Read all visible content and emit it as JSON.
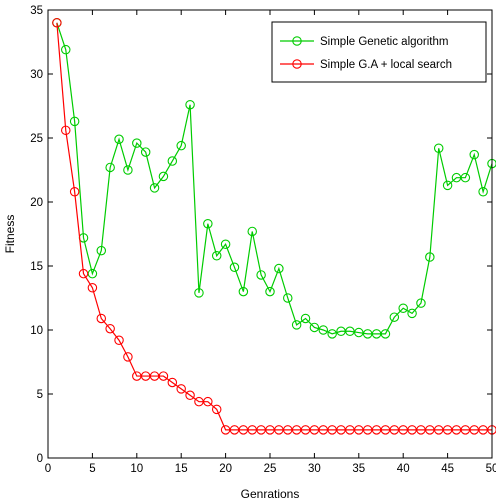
{
  "chart_data": {
    "type": "line",
    "title": "",
    "xlabel": "Genrations",
    "ylabel": "Fitness",
    "xlim": [
      0,
      50
    ],
    "ylim": [
      0,
      35
    ],
    "xticks": [
      0,
      5,
      10,
      15,
      20,
      25,
      30,
      35,
      40,
      45,
      50
    ],
    "yticks": [
      0,
      5,
      10,
      15,
      20,
      25,
      30,
      35
    ],
    "grid": false,
    "legend_position": "top-right",
    "x": [
      1,
      2,
      3,
      4,
      5,
      6,
      7,
      8,
      9,
      10,
      11,
      12,
      13,
      14,
      15,
      16,
      17,
      18,
      19,
      20,
      21,
      22,
      23,
      24,
      25,
      26,
      27,
      28,
      29,
      30,
      31,
      32,
      33,
      34,
      35,
      36,
      37,
      38,
      39,
      40,
      41,
      42,
      43,
      44,
      45,
      46,
      47,
      48,
      49,
      50
    ],
    "series": [
      {
        "name": "Simple Genetic algorithm",
        "color": "#00cc00",
        "marker": "circle",
        "values": [
          34,
          31.9,
          26.3,
          17.2,
          14.4,
          16.2,
          22.7,
          24.9,
          22.5,
          24.6,
          23.9,
          21.1,
          22,
          23.2,
          24.4,
          27.6,
          12.9,
          18.3,
          15.8,
          16.7,
          14.9,
          13,
          17.7,
          14.3,
          13,
          14.8,
          12.5,
          10.4,
          10.9,
          10.2,
          10,
          9.7,
          9.9,
          9.9,
          9.8,
          9.7,
          9.7,
          9.7,
          11,
          11.7,
          11.3,
          12.1,
          15.7,
          24.2,
          21.3,
          21.9,
          21.9,
          23.7,
          20.8,
          23
        ]
      },
      {
        "name": "Simple G.A + local search",
        "color": "#ff0000",
        "marker": "circle",
        "values": [
          34,
          25.6,
          20.8,
          14.4,
          13.3,
          10.9,
          10.1,
          9.2,
          7.9,
          6.4,
          6.4,
          6.4,
          6.4,
          5.9,
          5.4,
          4.9,
          4.4,
          4.4,
          3.8,
          2.2,
          2.2,
          2.2,
          2.2,
          2.2,
          2.2,
          2.2,
          2.2,
          2.2,
          2.2,
          2.2,
          2.2,
          2.2,
          2.2,
          2.2,
          2.2,
          2.2,
          2.2,
          2.2,
          2.2,
          2.2,
          2.2,
          2.2,
          2.2,
          2.2,
          2.2,
          2.2,
          2.2,
          2.2,
          2.2,
          2.2
        ]
      }
    ]
  }
}
